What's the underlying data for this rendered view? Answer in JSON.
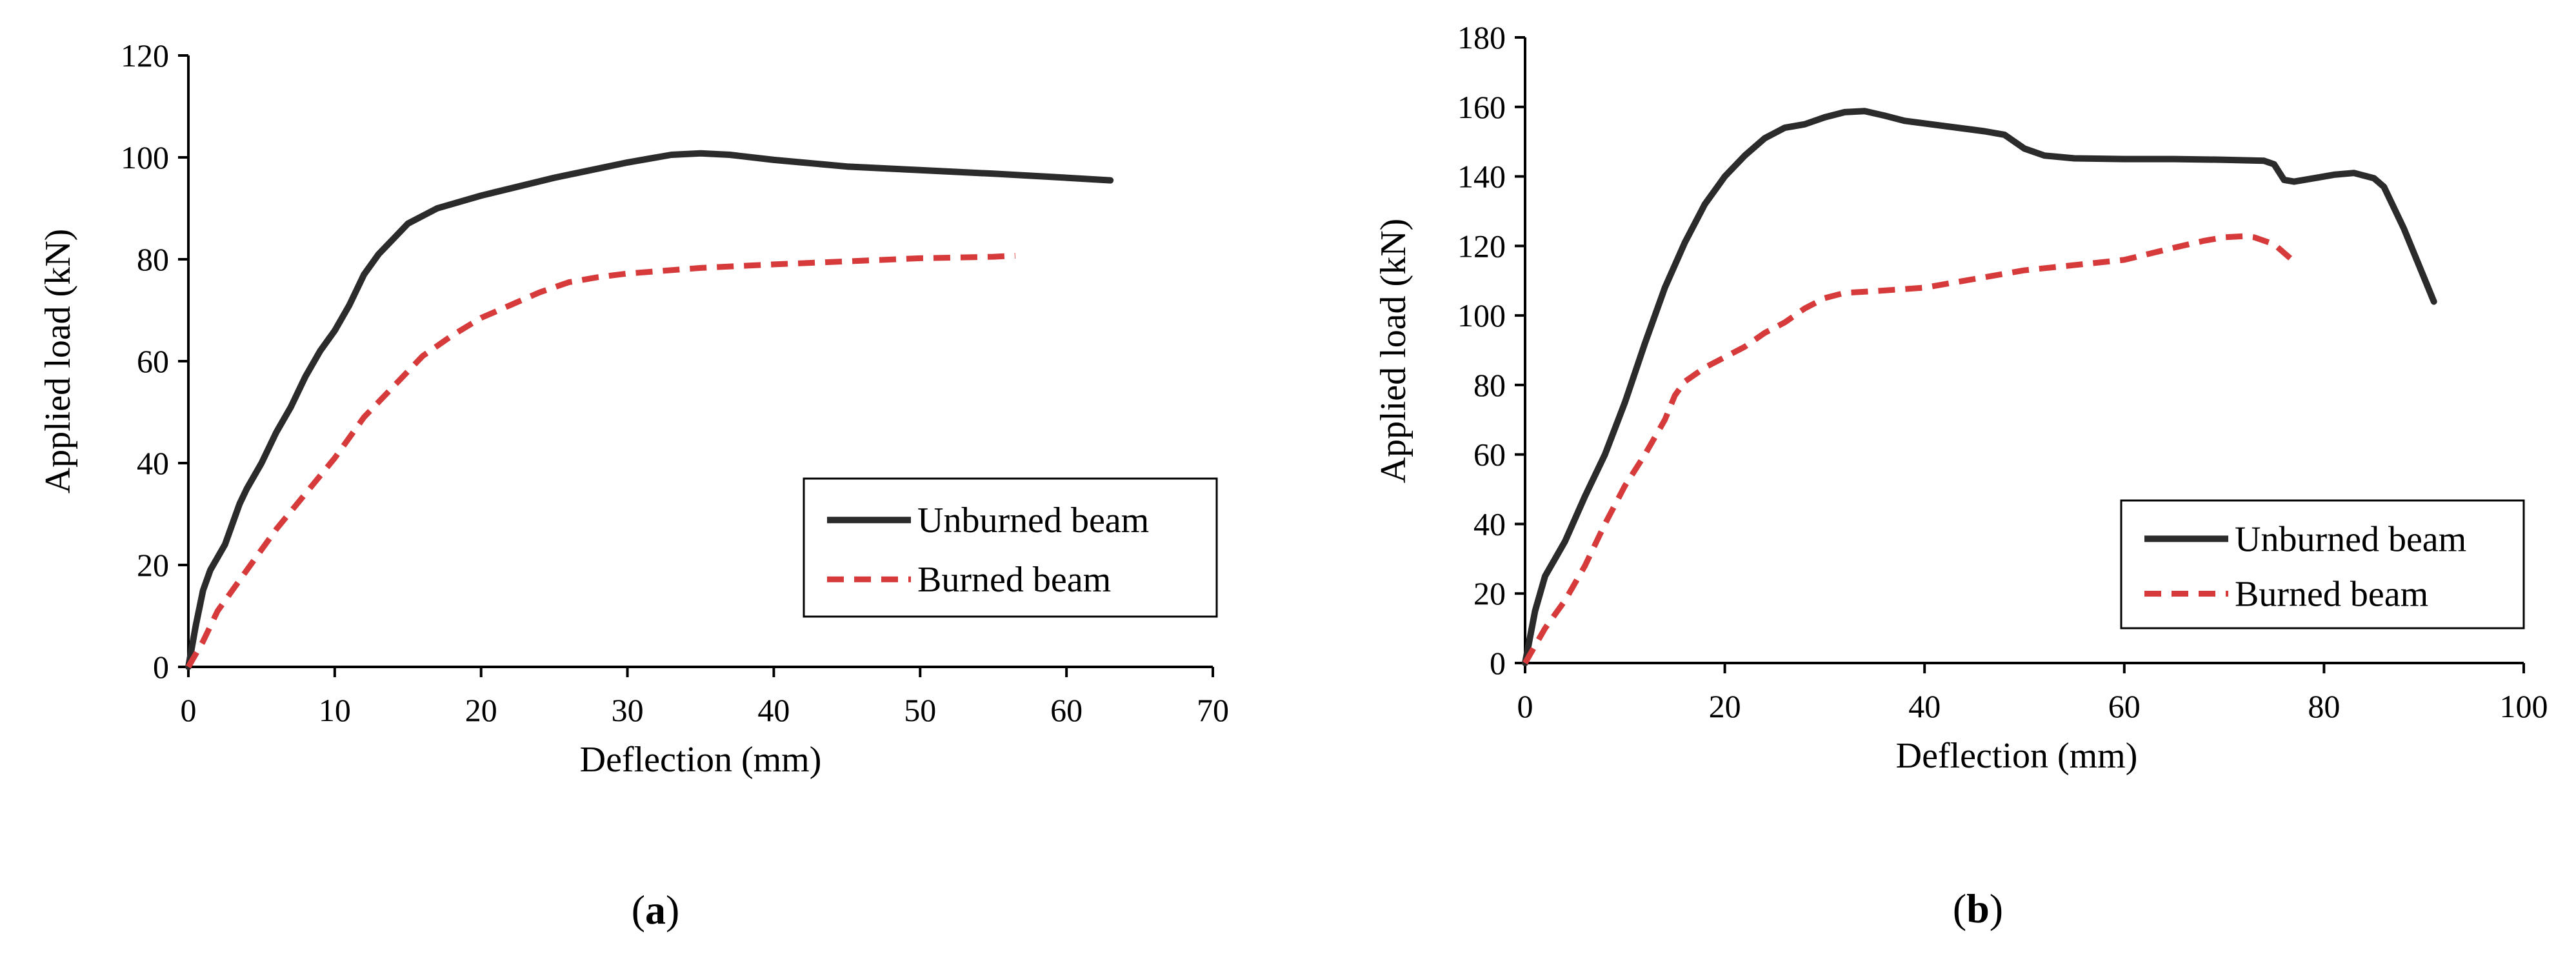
{
  "colors": {
    "unburned": "#2b2b2b",
    "burned": "#d63a3a",
    "axis": "#000000"
  },
  "chart_data": [
    {
      "type": "line",
      "panel_label": "a",
      "xlabel": "Deflection (mm)",
      "ylabel": "Applied load (kN)",
      "xlim": [
        0,
        70
      ],
      "ylim": [
        0,
        120
      ],
      "xticks": [
        0,
        10,
        20,
        30,
        40,
        50,
        60,
        70
      ],
      "yticks": [
        0,
        20,
        40,
        60,
        80,
        100,
        120
      ],
      "grid": false,
      "legend_position": "lower-right",
      "series": [
        {
          "name": "Unburned beam",
          "style": "solid",
          "points": [
            [
              0,
              0
            ],
            [
              0.5,
              8
            ],
            [
              1,
              15
            ],
            [
              1.5,
              19
            ],
            [
              2.5,
              24
            ],
            [
              3.5,
              32
            ],
            [
              4,
              35
            ],
            [
              5,
              40
            ],
            [
              6,
              46
            ],
            [
              7,
              51
            ],
            [
              8,
              57
            ],
            [
              9,
              62
            ],
            [
              10,
              66
            ],
            [
              11,
              71
            ],
            [
              12,
              77
            ],
            [
              13,
              81
            ],
            [
              14,
              84
            ],
            [
              15,
              87
            ],
            [
              17,
              90
            ],
            [
              20,
              92.5
            ],
            [
              25,
              96
            ],
            [
              30,
              99
            ],
            [
              33,
              100.5
            ],
            [
              35,
              100.8
            ],
            [
              37,
              100.5
            ],
            [
              40,
              99.5
            ],
            [
              45,
              98.2
            ],
            [
              50,
              97.5
            ],
            [
              55,
              96.8
            ],
            [
              60,
              96
            ],
            [
              63,
              95.5
            ]
          ]
        },
        {
          "name": "Burned beam",
          "style": "dashed",
          "points": [
            [
              0,
              0
            ],
            [
              1,
              5
            ],
            [
              2,
              11
            ],
            [
              4,
              19
            ],
            [
              6,
              27
            ],
            [
              8,
              34
            ],
            [
              10,
              41
            ],
            [
              12,
              49
            ],
            [
              14,
              55
            ],
            [
              16,
              61
            ],
            [
              18,
              65
            ],
            [
              20,
              68.5
            ],
            [
              22,
              71
            ],
            [
              24,
              73.5
            ],
            [
              26,
              75.5
            ],
            [
              28,
              76.5
            ],
            [
              30,
              77.2
            ],
            [
              35,
              78.3
            ],
            [
              40,
              79
            ],
            [
              45,
              79.6
            ],
            [
              50,
              80.2
            ],
            [
              55,
              80.5
            ],
            [
              56.5,
              80.7
            ]
          ]
        }
      ]
    },
    {
      "type": "line",
      "panel_label": "b",
      "xlabel": "Deflection (mm)",
      "ylabel": "Applied load (kN)",
      "xlim": [
        0,
        100
      ],
      "ylim": [
        0,
        180
      ],
      "xticks": [
        0,
        20,
        40,
        60,
        80,
        100
      ],
      "yticks": [
        0,
        20,
        40,
        60,
        80,
        100,
        120,
        140,
        160,
        180
      ],
      "grid": false,
      "legend_position": "lower-right",
      "series": [
        {
          "name": "Unburned beam",
          "style": "solid",
          "points": [
            [
              0,
              0
            ],
            [
              1,
              15
            ],
            [
              2,
              25
            ],
            [
              4,
              35
            ],
            [
              6,
              48
            ],
            [
              8,
              60
            ],
            [
              10,
              75
            ],
            [
              12,
              92
            ],
            [
              14,
              108
            ],
            [
              16,
              121
            ],
            [
              18,
              132
            ],
            [
              20,
              140
            ],
            [
              22,
              146
            ],
            [
              24,
              151
            ],
            [
              26,
              154
            ],
            [
              28,
              155
            ],
            [
              30,
              157
            ],
            [
              32,
              158.5
            ],
            [
              34,
              158.8
            ],
            [
              36,
              157.5
            ],
            [
              38,
              156
            ],
            [
              42,
              154.5
            ],
            [
              46,
              153
            ],
            [
              48,
              152
            ],
            [
              50,
              148
            ],
            [
              52,
              146
            ],
            [
              55,
              145.2
            ],
            [
              60,
              145
            ],
            [
              65,
              145
            ],
            [
              70,
              144.8
            ],
            [
              74,
              144.5
            ],
            [
              75,
              143.5
            ],
            [
              76,
              139
            ],
            [
              77,
              138.5
            ],
            [
              79,
              139.5
            ],
            [
              81,
              140.5
            ],
            [
              83,
              141
            ],
            [
              85,
              139.5
            ],
            [
              86,
              137
            ],
            [
              87,
              131
            ],
            [
              88,
              125
            ],
            [
              89,
              118
            ],
            [
              90,
              111
            ],
            [
              91,
              104
            ]
          ]
        },
        {
          "name": "Burned beam",
          "style": "dashed",
          "points": [
            [
              0,
              0
            ],
            [
              2,
              10
            ],
            [
              4,
              18
            ],
            [
              6,
              28
            ],
            [
              8,
              40
            ],
            [
              10,
              51
            ],
            [
              12,
              60
            ],
            [
              14,
              70
            ],
            [
              15,
              77
            ],
            [
              16,
              81
            ],
            [
              18,
              85
            ],
            [
              20,
              88
            ],
            [
              22,
              91
            ],
            [
              24,
              95
            ],
            [
              26,
              98
            ],
            [
              28,
              102
            ],
            [
              30,
              105
            ],
            [
              32,
              106.5
            ],
            [
              35,
              107
            ],
            [
              40,
              108
            ],
            [
              45,
              110.5
            ],
            [
              50,
              113
            ],
            [
              55,
              114.5
            ],
            [
              60,
              116
            ],
            [
              65,
              119.5
            ],
            [
              68,
              121.5
            ],
            [
              70,
              122.5
            ],
            [
              72,
              122.8
            ],
            [
              73,
              122.5
            ],
            [
              75,
              120.5
            ],
            [
              77,
              115.5
            ]
          ]
        }
      ]
    }
  ]
}
